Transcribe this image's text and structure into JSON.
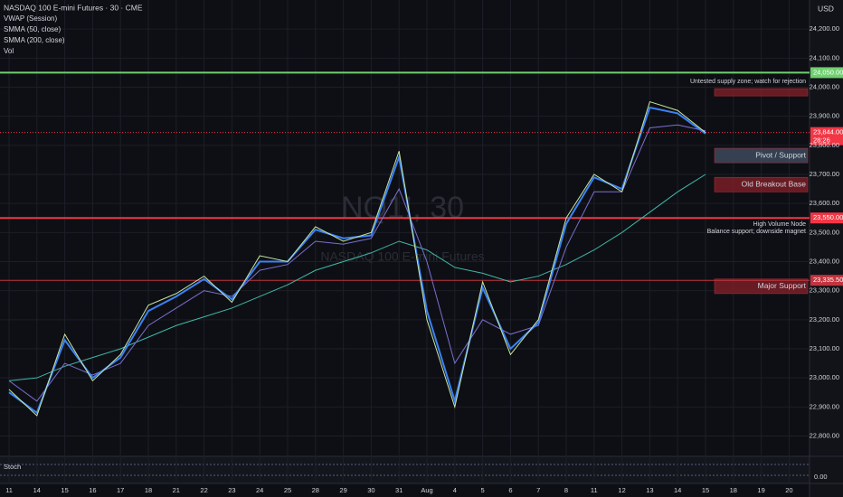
{
  "chart_data": {
    "type": "line",
    "title": "NASDAQ 100 E-mini Futures · 30 · CME",
    "watermark": [
      "NQ1!, 30",
      "NASDAQ 100 E-mini Futures"
    ],
    "currency": "USD",
    "categories": [
      "11",
      "14",
      "15",
      "16",
      "17",
      "18",
      "21",
      "22",
      "23",
      "24",
      "25",
      "28",
      "29",
      "30",
      "31",
      "Aug",
      "4",
      "5",
      "6",
      "7",
      "8",
      "11",
      "12",
      "13",
      "14",
      "15",
      "18",
      "19",
      "20"
    ],
    "price": {
      "color": "#c8e6a0",
      "values": [
        22960,
        22870,
        23150,
        22990,
        23080,
        23250,
        23290,
        23350,
        23260,
        23420,
        23400,
        23520,
        23470,
        23500,
        23780,
        23200,
        22900,
        23330,
        23080,
        23200,
        23550,
        23700,
        23640,
        23950,
        23920,
        23844,
        null,
        null,
        null
      ]
    },
    "series": [
      {
        "name": "VWAP (Session)",
        "color": "#3b82f6",
        "values": [
          22950,
          22880,
          23130,
          23000,
          23070,
          23230,
          23280,
          23340,
          23270,
          23400,
          23400,
          23510,
          23480,
          23490,
          23760,
          23230,
          22920,
          23310,
          23100,
          23190,
          23530,
          23690,
          23650,
          23930,
          23910,
          23840,
          null,
          null,
          null
        ]
      },
      {
        "name": "SMMA (50, close)",
        "color": "#7b6fd0",
        "values": [
          22990,
          22920,
          23050,
          23010,
          23050,
          23180,
          23240,
          23300,
          23280,
          23370,
          23390,
          23470,
          23460,
          23480,
          23650,
          23400,
          23050,
          23200,
          23150,
          23180,
          23450,
          23640,
          23640,
          23860,
          23870,
          23850,
          null,
          null,
          null
        ]
      },
      {
        "name": "SMMA (200, close)",
        "color": "#3fb8a9",
        "values": [
          22990,
          23000,
          23040,
          23070,
          23100,
          23140,
          23180,
          23210,
          23240,
          23280,
          23320,
          23370,
          23400,
          23430,
          23470,
          23440,
          23380,
          23360,
          23330,
          23350,
          23390,
          23440,
          23500,
          23570,
          23640,
          23700,
          null,
          null,
          null
        ]
      }
    ],
    "extra_legend": "Vol",
    "ylim": [
      22730,
      24300
    ],
    "yticks": [
      {
        "value": 22800,
        "label": "22,800.00"
      },
      {
        "value": 22900,
        "label": "22,900.00"
      },
      {
        "value": 23000,
        "label": "23,000.00"
      },
      {
        "value": 23100,
        "label": "23,100.00"
      },
      {
        "value": 23200,
        "label": "23,200.00"
      },
      {
        "value": 23300,
        "label": "23,300.00"
      },
      {
        "value": 23400,
        "label": "23,400.00"
      },
      {
        "value": 23500,
        "label": "23,500.00"
      },
      {
        "value": 23600,
        "label": "23,600.00"
      },
      {
        "value": 23700,
        "label": "23,700.00"
      },
      {
        "value": 23800,
        "label": "23,800.00"
      },
      {
        "value": 23900,
        "label": "23,900.00"
      },
      {
        "value": 24000,
        "label": "24,000.00"
      },
      {
        "value": 24100,
        "label": "24,100.00"
      },
      {
        "value": 24200,
        "label": "24,200.00"
      }
    ],
    "levels": [
      {
        "value": 24050,
        "label": "24,050.00",
        "color": "#6fcf6f"
      },
      {
        "value": 23550,
        "label": "23,550.00",
        "color": "#f23645"
      },
      {
        "value": 23335.5,
        "label": "23,335.50",
        "color": "#c2343f"
      }
    ],
    "current_price": {
      "value": 23844,
      "label": "23,844.00",
      "countdown": "28:26",
      "color": "#f23645"
    },
    "zones": [
      {
        "range": [
          23970,
          23995
        ],
        "label": "Untested supply zone; watch for rejection",
        "color": "#7a1e26"
      },
      {
        "range": [
          23740,
          23790
        ],
        "label": "Pivot / Support",
        "color": "#3c4a5c"
      },
      {
        "range": [
          23640,
          23690
        ],
        "label": "Old Breakout Base",
        "color": "#7a1e26"
      },
      {
        "range": [
          23290,
          23340
        ],
        "label": "Major Support",
        "color": "#7a1e26"
      }
    ],
    "notes": [
      {
        "value": 23550,
        "lines": [
          "High Volume Node",
          "Balance support; downside magnet"
        ]
      }
    ],
    "oscillator": {
      "name": "Stoch",
      "tick": {
        "value": 0,
        "label": "0.00"
      }
    }
  }
}
